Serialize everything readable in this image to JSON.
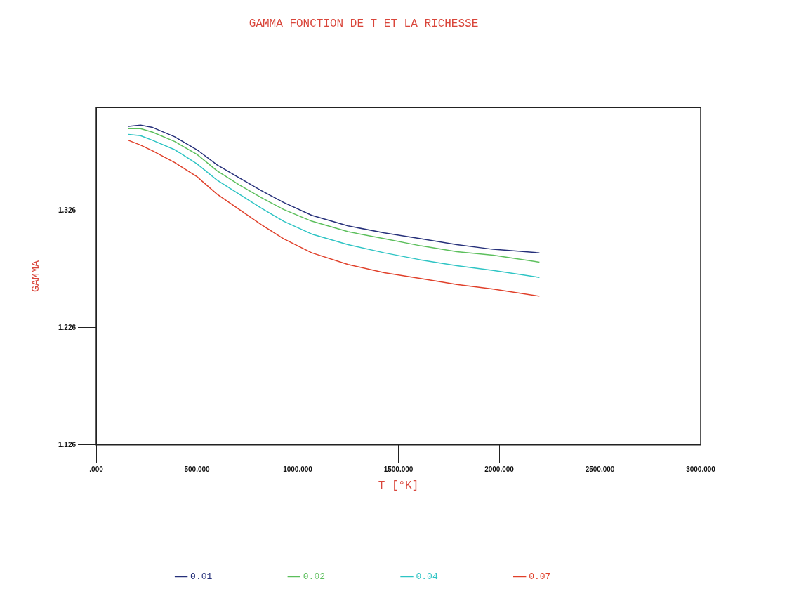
{
  "chart_data": {
    "type": "line",
    "title": "GAMMA FONCTION DE T ET LA RICHESSE",
    "xlabel": "T [°K]",
    "ylabel": "GAMMA",
    "x": [
      160,
      220,
      280,
      390,
      500,
      600,
      710,
      820,
      930,
      1070,
      1250,
      1430,
      1610,
      1790,
      1970,
      2200
    ],
    "series": [
      {
        "name": "0.01",
        "color": "#26307a",
        "values": [
          1.398,
          1.399,
          1.397,
          1.389,
          1.378,
          1.365,
          1.354,
          1.343,
          1.333,
          1.322,
          1.313,
          1.307,
          1.302,
          1.297,
          1.293,
          1.29
        ]
      },
      {
        "name": "0.02",
        "color": "#5cbf5c",
        "values": [
          1.396,
          1.396,
          1.393,
          1.385,
          1.374,
          1.36,
          1.348,
          1.337,
          1.327,
          1.317,
          1.308,
          1.302,
          1.296,
          1.291,
          1.288,
          1.282
        ]
      },
      {
        "name": "0.04",
        "color": "#2ec4c4",
        "values": [
          1.391,
          1.39,
          1.386,
          1.378,
          1.366,
          1.352,
          1.34,
          1.328,
          1.317,
          1.306,
          1.297,
          1.29,
          1.284,
          1.279,
          1.275,
          1.269
        ]
      },
      {
        "name": "0.07",
        "color": "#e0402a",
        "values": [
          1.386,
          1.382,
          1.377,
          1.367,
          1.355,
          1.34,
          1.327,
          1.314,
          1.302,
          1.29,
          1.28,
          1.273,
          1.268,
          1.263,
          1.259,
          1.253
        ]
      }
    ],
    "xlim": [
      0,
      3000
    ],
    "xticks": [
      {
        "value": 0,
        "label": ".000"
      },
      {
        "value": 500,
        "label": "500.000"
      },
      {
        "value": 1000,
        "label": "1000.000"
      },
      {
        "value": 1500,
        "label": "1500.000"
      },
      {
        "value": 2000,
        "label": "2000.000"
      },
      {
        "value": 2500,
        "label": "2500.000"
      },
      {
        "value": 3000,
        "label": "3000.000"
      }
    ],
    "ylim": [
      1.126,
      1.414
    ],
    "yticks": [
      1.126,
      1.226,
      1.326
    ],
    "grid": false,
    "legend": "bottom",
    "marker": "none",
    "line_style": "solid"
  }
}
